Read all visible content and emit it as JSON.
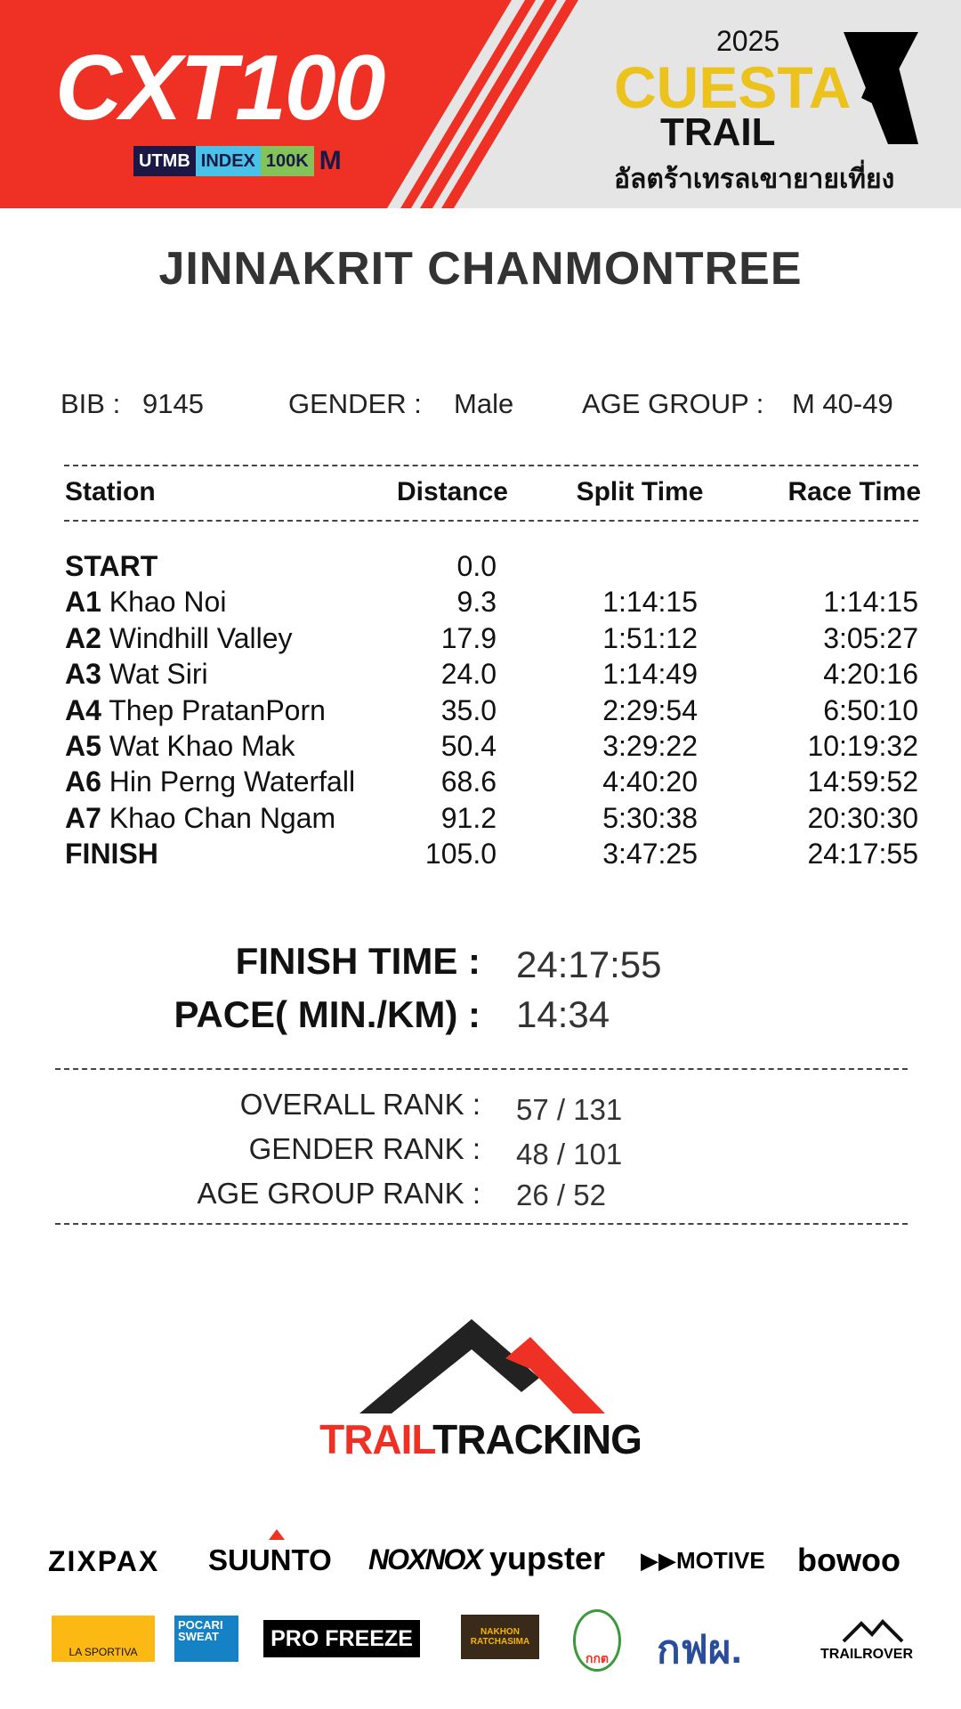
{
  "header": {
    "left_logo": "CXT100",
    "badges": [
      "UTMB",
      "INDEX",
      "100K",
      "M"
    ],
    "year": "2025",
    "event_line1": "CUESTA",
    "event_line2": "TRAIL",
    "event_thai": "อัลตร้าเทรลเขายายเที่ยง",
    "colors": {
      "red": "#ee3124",
      "yellow": "#ecc21c"
    }
  },
  "runner": {
    "name": "JINNAKRIT CHANMONTREE",
    "bib_label": "BIB :",
    "bib": "9145",
    "gender_label": "GENDER  :",
    "gender": "Male",
    "age_label": "AGE GROUP  :",
    "age_group": "M 40-49"
  },
  "table": {
    "headers": [
      "Station",
      "Distance",
      "Split Time",
      "Race Time"
    ],
    "rows": [
      {
        "code": "START",
        "name": "",
        "distance": "0.0",
        "split": "",
        "race": ""
      },
      {
        "code": "A1",
        "name": "Khao Noi",
        "distance": "9.3",
        "split": "1:14:15",
        "race": "1:14:15"
      },
      {
        "code": "A2",
        "name": "Windhill Valley",
        "distance": "17.9",
        "split": "1:51:12",
        "race": "3:05:27"
      },
      {
        "code": "A3",
        "name": "Wat Siri",
        "distance": "24.0",
        "split": "1:14:49",
        "race": "4:20:16"
      },
      {
        "code": "A4",
        "name": "Thep PratanPorn",
        "distance": "35.0",
        "split": "2:29:54",
        "race": "6:50:10"
      },
      {
        "code": "A5",
        "name": "Wat Khao Mak",
        "distance": "50.4",
        "split": "3:29:22",
        "race": "10:19:32"
      },
      {
        "code": "A6",
        "name": "Hin Perng Waterfall",
        "distance": "68.6",
        "split": "4:40:20",
        "race": "14:59:52"
      },
      {
        "code": "A7",
        "name": "Khao Chan Ngam",
        "distance": "91.2",
        "split": "5:30:38",
        "race": "20:30:30"
      },
      {
        "code": "FINISH",
        "name": "",
        "distance": "105.0",
        "split": "3:47:25",
        "race": "24:17:55"
      }
    ]
  },
  "summary": {
    "finish_label": "FINISH TIME :",
    "finish": "24:17:55",
    "pace_label": "PACE( MIN./KM) :",
    "pace": "14:34"
  },
  "ranks": {
    "overall_label": "OVERALL RANK  :",
    "overall": "57 / 131",
    "gender_label": "GENDER RANK  :",
    "gender": "48 / 101",
    "age_label": "AGE GROUP RANK :",
    "age": "26 / 52"
  },
  "tracker": {
    "part1": "TRAIL",
    "part2": "TRACKING"
  },
  "sponsors_row1": [
    "ZIXPAX",
    "SUUNTO",
    "NOXNOX",
    "yupster",
    "MOTIVE",
    "bowoo"
  ],
  "sponsors_row2": [
    "LA SPORTIVA",
    "POCARI SWEAT",
    "PRO FREEZE",
    "NAKHON RATCHASIMA",
    "กกต",
    "กฟผ.",
    "TRAILROVER"
  ]
}
